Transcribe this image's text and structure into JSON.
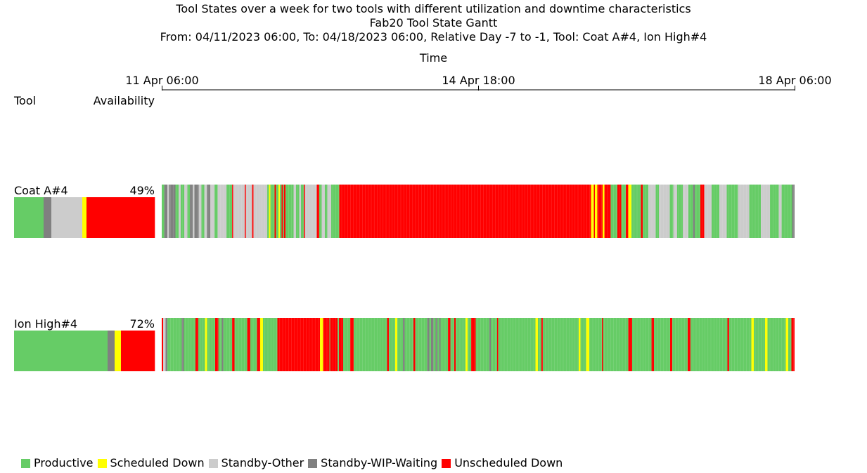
{
  "header": {
    "title": "Tool States over a week for two tools with different utilization and downtime characteristics",
    "subtitle": "Fab20 Tool State Gantt",
    "range": "From: 04/11/2023 06:00, To: 04/18/2023 06:00, Relative Day -7 to -1, Tool: Coat A#4, Ion High#4",
    "axis_title": "Time"
  },
  "columns": {
    "tool": "Tool",
    "availability": "Availability"
  },
  "colors": {
    "Productive": "#66cc66",
    "Scheduled Down": "#ffff00",
    "Standby-Other": "#cccccc",
    "Standby-WIP-Waiting": "#808080",
    "Unscheduled Down": "#ff0000"
  },
  "chart_data": {
    "type": "gantt",
    "x_axis": {
      "start": "2023-04-11 06:00",
      "end": "2023-04-18 06:00",
      "ticks": [
        {
          "time": "2023-04-11 06:00",
          "label": "11 Apr 06:00"
        },
        {
          "time": "2023-04-14 18:00",
          "label": "14 Apr 18:00"
        },
        {
          "time": "2023-04-18 06:00",
          "label": "18 Apr 06:00"
        }
      ]
    },
    "legend": [
      "Productive",
      "Scheduled Down",
      "Standby-Other",
      "Standby-WIP-Waiting",
      "Unscheduled Down"
    ],
    "legend_position": "bottom-left",
    "tools": [
      {
        "name": "Coat A#4",
        "availability": "49%",
        "summary": [
          {
            "state": "Productive",
            "fraction": 0.21
          },
          {
            "state": "Standby-WIP-Waiting",
            "fraction": 0.055
          },
          {
            "state": "Standby-Other",
            "fraction": 0.22
          },
          {
            "state": "Scheduled Down",
            "fraction": 0.03
          },
          {
            "state": "Unscheduled Down",
            "fraction": 0.485
          }
        ],
        "segments": [
          [
            "2023-04-11 06:00",
            "Productive"
          ],
          [
            "2023-04-11 06:40",
            "Standby-WIP-Waiting"
          ],
          [
            "2023-04-11 07:30",
            "Standby-Other"
          ],
          [
            "2023-04-11 08:00",
            "Standby-WIP-Waiting"
          ],
          [
            "2023-04-11 09:40",
            "Productive"
          ],
          [
            "2023-04-11 10:30",
            "Standby-Other"
          ],
          [
            "2023-04-11 11:00",
            "Productive"
          ],
          [
            "2023-04-11 12:00",
            "Standby-Other"
          ],
          [
            "2023-04-11 12:50",
            "Productive"
          ],
          [
            "2023-04-11 13:30",
            "Standby-WIP-Waiting"
          ],
          [
            "2023-04-11 14:10",
            "Standby-Other"
          ],
          [
            "2023-04-11 14:40",
            "Standby-WIP-Waiting"
          ],
          [
            "2023-04-11 15:50",
            "Standby-Other"
          ],
          [
            "2023-04-11 16:30",
            "Productive"
          ],
          [
            "2023-04-11 17:20",
            "Standby-Other"
          ],
          [
            "2023-04-11 18:00",
            "Standby-WIP-Waiting"
          ],
          [
            "2023-04-11 18:50",
            "Standby-Other"
          ],
          [
            "2023-04-11 20:00",
            "Productive"
          ],
          [
            "2023-04-11 20:50",
            "Standby-Other"
          ],
          [
            "2023-04-11 23:10",
            "Productive"
          ],
          [
            "2023-04-12 00:40",
            "Unscheduled Down"
          ],
          [
            "2023-04-12 00:55",
            "Standby-Other"
          ],
          [
            "2023-04-12 04:00",
            "Unscheduled Down"
          ],
          [
            "2023-04-12 04:20",
            "Standby-Other"
          ],
          [
            "2023-04-12 06:00",
            "Unscheduled Down"
          ],
          [
            "2023-04-12 06:20",
            "Standby-Other"
          ],
          [
            "2023-04-12 10:00",
            "Productive"
          ],
          [
            "2023-04-12 10:30",
            "Scheduled Down"
          ],
          [
            "2023-04-12 10:50",
            "Productive"
          ],
          [
            "2023-04-12 12:00",
            "Unscheduled Down"
          ],
          [
            "2023-04-12 12:20",
            "Productive"
          ],
          [
            "2023-04-12 13:00",
            "Scheduled Down"
          ],
          [
            "2023-04-12 13:20",
            "Productive"
          ],
          [
            "2023-04-12 13:50",
            "Unscheduled Down"
          ],
          [
            "2023-04-12 14:10",
            "Productive"
          ],
          [
            "2023-04-12 14:30",
            "Unscheduled Down"
          ],
          [
            "2023-04-12 14:50",
            "Productive"
          ],
          [
            "2023-04-12 17:00",
            "Standby-Other"
          ],
          [
            "2023-04-12 17:40",
            "Productive"
          ],
          [
            "2023-04-12 18:30",
            "Standby-Other"
          ],
          [
            "2023-04-12 19:00",
            "Productive"
          ],
          [
            "2023-04-12 19:40",
            "Unscheduled Down"
          ],
          [
            "2023-04-12 20:00",
            "Standby-Other"
          ],
          [
            "2023-04-12 23:10",
            "Unscheduled Down"
          ],
          [
            "2023-04-12 23:50",
            "Productive"
          ],
          [
            "2023-04-13 00:30",
            "Standby-Other"
          ],
          [
            "2023-04-13 01:20",
            "Productive"
          ],
          [
            "2023-04-13 02:00",
            "Standby-Other"
          ],
          [
            "2023-04-13 03:00",
            "Productive"
          ],
          [
            "2023-04-13 05:10",
            "Unscheduled Down"
          ],
          [
            "2023-04-16 00:00",
            "Scheduled Down"
          ],
          [
            "2023-04-16 00:40",
            "Unscheduled Down"
          ],
          [
            "2023-04-16 01:00",
            "Scheduled Down"
          ],
          [
            "2023-04-16 01:40",
            "Unscheduled Down"
          ],
          [
            "2023-04-16 03:00",
            "Scheduled Down"
          ],
          [
            "2023-04-16 03:30",
            "Unscheduled Down"
          ],
          [
            "2023-04-16 05:10",
            "Productive"
          ],
          [
            "2023-04-16 07:00",
            "Unscheduled Down"
          ],
          [
            "2023-04-16 08:00",
            "Productive"
          ],
          [
            "2023-04-16 09:10",
            "Unscheduled Down"
          ],
          [
            "2023-04-16 09:50",
            "Scheduled Down"
          ],
          [
            "2023-04-16 10:40",
            "Productive"
          ],
          [
            "2023-04-16 13:10",
            "Unscheduled Down"
          ],
          [
            "2023-04-16 13:40",
            "Productive"
          ],
          [
            "2023-04-16 15:10",
            "Standby-Other"
          ],
          [
            "2023-04-16 17:10",
            "Productive"
          ],
          [
            "2023-04-16 18:00",
            "Standby-Other"
          ],
          [
            "2023-04-16 20:50",
            "Productive"
          ],
          [
            "2023-04-16 21:50",
            "Standby-Other"
          ],
          [
            "2023-04-16 22:50",
            "Productive"
          ],
          [
            "2023-04-17 00:20",
            "Standby-Other"
          ],
          [
            "2023-04-17 01:50",
            "Productive"
          ],
          [
            "2023-04-17 03:00",
            "Standby-WIP-Waiting"
          ],
          [
            "2023-04-17 03:30",
            "Productive"
          ],
          [
            "2023-04-17 05:00",
            "Unscheduled Down"
          ],
          [
            "2023-04-17 06:00",
            "Standby-Other"
          ],
          [
            "2023-04-17 08:00",
            "Productive"
          ],
          [
            "2023-04-17 10:00",
            "Standby-Other"
          ],
          [
            "2023-04-17 12:00",
            "Productive"
          ],
          [
            "2023-04-17 15:00",
            "Standby-Other"
          ],
          [
            "2023-04-17 18:00",
            "Productive"
          ],
          [
            "2023-04-17 21:00",
            "Standby-Other"
          ],
          [
            "2023-04-17 23:30",
            "Productive"
          ],
          [
            "2023-04-18 01:50",
            "Standby-Other"
          ],
          [
            "2023-04-18 02:30",
            "Productive"
          ],
          [
            "2023-04-18 05:20",
            "Standby-WIP-Waiting"
          ]
        ]
      },
      {
        "name": "Ion High#4",
        "availability": "72%",
        "summary": [
          {
            "state": "Productive",
            "fraction": 0.665
          },
          {
            "state": "Standby-WIP-Waiting",
            "fraction": 0.05
          },
          {
            "state": "Scheduled Down",
            "fraction": 0.045
          },
          {
            "state": "Unscheduled Down",
            "fraction": 0.24
          }
        ],
        "segments": [
          [
            "2023-04-11 06:00",
            "Unscheduled Down"
          ],
          [
            "2023-04-11 06:20",
            "Standby-Other"
          ],
          [
            "2023-04-11 07:00",
            "Standby-WIP-Waiting"
          ],
          [
            "2023-04-11 07:30",
            "Productive"
          ],
          [
            "2023-04-11 11:20",
            "Standby-WIP-Waiting"
          ],
          [
            "2023-04-11 11:50",
            "Productive"
          ],
          [
            "2023-04-11 15:00",
            "Unscheduled Down"
          ],
          [
            "2023-04-11 15:40",
            "Productive"
          ],
          [
            "2023-04-11 17:30",
            "Scheduled Down"
          ],
          [
            "2023-04-11 18:00",
            "Productive"
          ],
          [
            "2023-04-11 20:10",
            "Unscheduled Down"
          ],
          [
            "2023-04-11 21:00",
            "Productive"
          ],
          [
            "2023-04-11 22:00",
            "Standby-WIP-Waiting"
          ],
          [
            "2023-04-11 22:20",
            "Productive"
          ],
          [
            "2023-04-12 00:40",
            "Unscheduled Down"
          ],
          [
            "2023-04-12 01:20",
            "Productive"
          ],
          [
            "2023-04-12 04:40",
            "Unscheduled Down"
          ],
          [
            "2023-04-12 05:30",
            "Productive"
          ],
          [
            "2023-04-12 07:20",
            "Unscheduled Down"
          ],
          [
            "2023-04-12 08:10",
            "Scheduled Down"
          ],
          [
            "2023-04-12 08:50",
            "Productive"
          ],
          [
            "2023-04-12 12:40",
            "Unscheduled Down"
          ],
          [
            "2023-04-13 00:00",
            "Scheduled Down"
          ],
          [
            "2023-04-13 00:50",
            "Unscheduled Down"
          ],
          [
            "2023-04-13 02:30",
            "Productive"
          ],
          [
            "2023-04-13 02:40",
            "Unscheduled Down"
          ],
          [
            "2023-04-13 04:40",
            "Productive"
          ],
          [
            "2023-04-13 05:00",
            "Unscheduled Down"
          ],
          [
            "2023-04-13 06:10",
            "Productive"
          ],
          [
            "2023-04-13 08:00",
            "Unscheduled Down"
          ],
          [
            "2023-04-13 09:00",
            "Productive"
          ],
          [
            "2023-04-13 17:50",
            "Unscheduled Down"
          ],
          [
            "2023-04-13 18:20",
            "Productive"
          ],
          [
            "2023-04-13 20:00",
            "Scheduled Down"
          ],
          [
            "2023-04-13 20:30",
            "Productive"
          ],
          [
            "2023-04-13 22:00",
            "Standby-WIP-Waiting"
          ],
          [
            "2023-04-13 22:30",
            "Productive"
          ],
          [
            "2023-04-14 00:50",
            "Unscheduled Down"
          ],
          [
            "2023-04-14 01:20",
            "Productive"
          ],
          [
            "2023-04-14 04:30",
            "Standby-WIP-Waiting"
          ],
          [
            "2023-04-14 05:00",
            "Productive"
          ],
          [
            "2023-04-14 05:30",
            "Standby-WIP-Waiting"
          ],
          [
            "2023-04-14 06:10",
            "Productive"
          ],
          [
            "2023-04-14 06:40",
            "Standby-WIP-Waiting"
          ],
          [
            "2023-04-14 07:10",
            "Productive"
          ],
          [
            "2023-04-14 07:40",
            "Standby-WIP-Waiting"
          ],
          [
            "2023-04-14 08:00",
            "Productive"
          ],
          [
            "2023-04-14 10:00",
            "Unscheduled Down"
          ],
          [
            "2023-04-14 10:40",
            "Productive"
          ],
          [
            "2023-04-14 11:40",
            "Unscheduled Down"
          ],
          [
            "2023-04-14 12:00",
            "Productive"
          ],
          [
            "2023-04-14 14:40",
            "Scheduled Down"
          ],
          [
            "2023-04-14 15:10",
            "Productive"
          ],
          [
            "2023-04-14 16:10",
            "Unscheduled Down"
          ],
          [
            "2023-04-14 17:20",
            "Productive"
          ],
          [
            "2023-04-14 21:00",
            "Standby-WIP-Waiting"
          ],
          [
            "2023-04-14 21:20",
            "Productive"
          ],
          [
            "2023-04-14 23:00",
            "Unscheduled Down"
          ],
          [
            "2023-04-14 23:20",
            "Productive"
          ],
          [
            "2023-04-15 09:10",
            "Scheduled Down"
          ],
          [
            "2023-04-15 09:50",
            "Productive"
          ],
          [
            "2023-04-15 10:50",
            "Unscheduled Down"
          ],
          [
            "2023-04-15 11:10",
            "Productive"
          ],
          [
            "2023-04-15 20:40",
            "Scheduled Down"
          ],
          [
            "2023-04-15 21:10",
            "Productive"
          ],
          [
            "2023-04-15 22:40",
            "Scheduled Down"
          ],
          [
            "2023-04-15 23:30",
            "Productive"
          ],
          [
            "2023-04-16 02:50",
            "Unscheduled Down"
          ],
          [
            "2023-04-16 03:10",
            "Productive"
          ],
          [
            "2023-04-16 09:50",
            "Unscheduled Down"
          ],
          [
            "2023-04-16 10:50",
            "Productive"
          ],
          [
            "2023-04-16 16:00",
            "Unscheduled Down"
          ],
          [
            "2023-04-16 16:40",
            "Productive"
          ],
          [
            "2023-04-16 21:00",
            "Unscheduled Down"
          ],
          [
            "2023-04-16 21:30",
            "Productive"
          ],
          [
            "2023-04-17 01:40",
            "Unscheduled Down"
          ],
          [
            "2023-04-17 02:20",
            "Productive"
          ],
          [
            "2023-04-17 12:10",
            "Unscheduled Down"
          ],
          [
            "2023-04-17 12:40",
            "Productive"
          ],
          [
            "2023-04-17 18:30",
            "Scheduled Down"
          ],
          [
            "2023-04-17 19:10",
            "Productive"
          ],
          [
            "2023-04-17 22:10",
            "Scheduled Down"
          ],
          [
            "2023-04-17 22:50",
            "Productive"
          ],
          [
            "2023-04-18 03:40",
            "Scheduled Down"
          ],
          [
            "2023-04-18 04:20",
            "Productive"
          ],
          [
            "2023-04-18 05:10",
            "Unscheduled Down"
          ]
        ]
      }
    ]
  }
}
